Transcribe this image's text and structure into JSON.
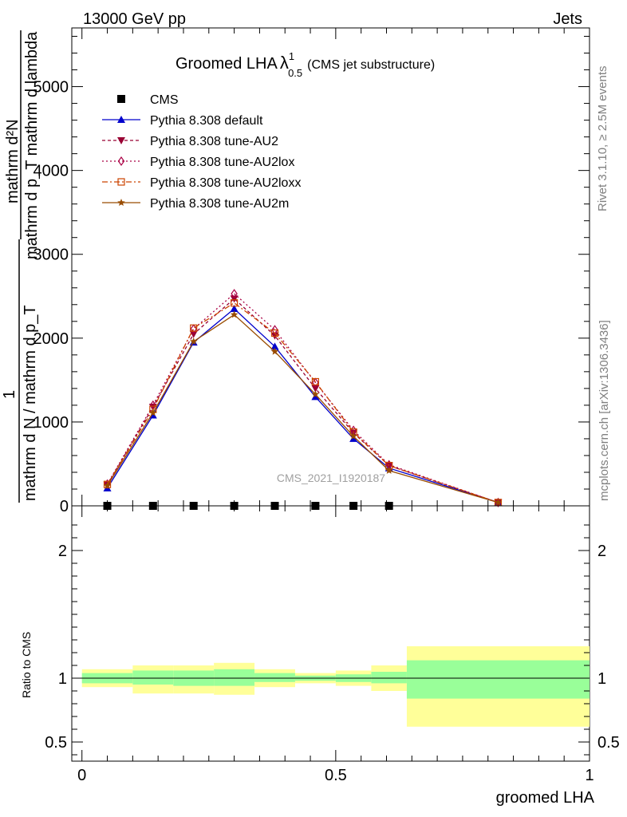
{
  "header": {
    "left": "13000 GeV pp",
    "right": "Jets"
  },
  "title": {
    "main": "Groomed LHA",
    "lambda": "λ",
    "sup": "1",
    "sub": "0.5",
    "suffix": "(CMS jet substructure)"
  },
  "side_labels": {
    "rivet": "Rivet 3.1.10, ≥ 2.5M events",
    "mcplots": "mcplots.cern.ch [arXiv:1306.3436]"
  },
  "watermark": "CMS_2021_I1920187",
  "ylabel_main": {
    "frac1_numer": "mathrm d²N",
    "frac1_denom": "mathrm d p_T mathrm d lambda",
    "one": "1",
    "frac2_denom": "mathrm d N / mathrm d p_T"
  },
  "ylabel_ratio": "Ratio to CMS",
  "xlabel": "groomed LHA",
  "chart_data": {
    "type": "line",
    "x": [
      0.05,
      0.14,
      0.22,
      0.3,
      0.38,
      0.46,
      0.535,
      0.605,
      0.82
    ],
    "xlim": [
      -0.02,
      1.0
    ],
    "ylim": [
      0,
      5700
    ],
    "yticks": [
      0,
      1000,
      2000,
      3000,
      4000,
      5000
    ],
    "ytick_labels": [
      "0",
      "1000",
      "2000",
      "3000",
      "4000",
      "5000"
    ],
    "xticks": [
      0,
      0.5,
      1
    ],
    "xtick_labels": [
      "0",
      "0.5",
      "1"
    ],
    "series": [
      {
        "name": "CMS",
        "style": "data",
        "color": "#000000",
        "marker": "square",
        "values": [
          0,
          0,
          0,
          0,
          0,
          0,
          0,
          0,
          null
        ]
      },
      {
        "name": "Pythia 8.308 default",
        "color": "#0000cc",
        "dash": "",
        "marker": "triangle-up",
        "values": [
          210,
          1080,
          1950,
          2350,
          1900,
          1300,
          800,
          450,
          40
        ]
      },
      {
        "name": "Pythia 8.308 tune-AU2",
        "color": "#990033",
        "dash": "4,3",
        "marker": "triangle-down",
        "values": [
          250,
          1180,
          2050,
          2470,
          2030,
          1400,
          870,
          480,
          40
        ]
      },
      {
        "name": "Pythia 8.308 tune-AU2lox",
        "color": "#aa0044",
        "dash": "2,3",
        "marker": "diamond-open",
        "values": [
          260,
          1200,
          2110,
          2530,
          2100,
          1470,
          900,
          490,
          40
        ]
      },
      {
        "name": "Pythia 8.308 tune-AU2loxx",
        "color": "#cc4400",
        "dash": "7,3,2,3",
        "marker": "square-open",
        "values": [
          255,
          1150,
          2120,
          2420,
          2060,
          1480,
          880,
          480,
          40
        ]
      },
      {
        "name": "Pythia 8.308 tune-AU2m",
        "color": "#994c00",
        "dash": "",
        "marker": "star",
        "values": [
          240,
          1110,
          1960,
          2280,
          1840,
          1330,
          830,
          420,
          40
        ]
      }
    ],
    "ratio": {
      "ylim": [
        0.35,
        2.35
      ],
      "yticks": [
        0.5,
        1,
        2
      ],
      "ytick_labels": [
        "0.5",
        "1",
        "2"
      ],
      "bins": [
        {
          "x0": 0.0,
          "x1": 0.1,
          "inner": [
            0.96,
            1.04
          ],
          "outer": [
            0.93,
            1.07
          ]
        },
        {
          "x0": 0.1,
          "x1": 0.18,
          "inner": [
            0.95,
            1.06
          ],
          "outer": [
            0.88,
            1.1
          ]
        },
        {
          "x0": 0.18,
          "x1": 0.26,
          "inner": [
            0.94,
            1.06
          ],
          "outer": [
            0.88,
            1.1
          ]
        },
        {
          "x0": 0.26,
          "x1": 0.34,
          "inner": [
            0.94,
            1.07
          ],
          "outer": [
            0.87,
            1.12
          ]
        },
        {
          "x0": 0.34,
          "x1": 0.42,
          "inner": [
            0.97,
            1.04
          ],
          "outer": [
            0.93,
            1.07
          ]
        },
        {
          "x0": 0.42,
          "x1": 0.5,
          "inner": [
            0.98,
            1.02
          ],
          "outer": [
            0.96,
            1.04
          ]
        },
        {
          "x0": 0.5,
          "x1": 0.57,
          "inner": [
            0.97,
            1.03
          ],
          "outer": [
            0.94,
            1.06
          ]
        },
        {
          "x0": 0.57,
          "x1": 0.64,
          "inner": [
            0.96,
            1.05
          ],
          "outer": [
            0.9,
            1.1
          ]
        },
        {
          "x0": 0.64,
          "x1": 1.0,
          "inner": [
            0.84,
            1.14
          ],
          "outer": [
            0.62,
            1.25
          ]
        }
      ]
    },
    "colors": {
      "inner_band": "#99ff99",
      "outer_band": "#ffff99"
    }
  }
}
